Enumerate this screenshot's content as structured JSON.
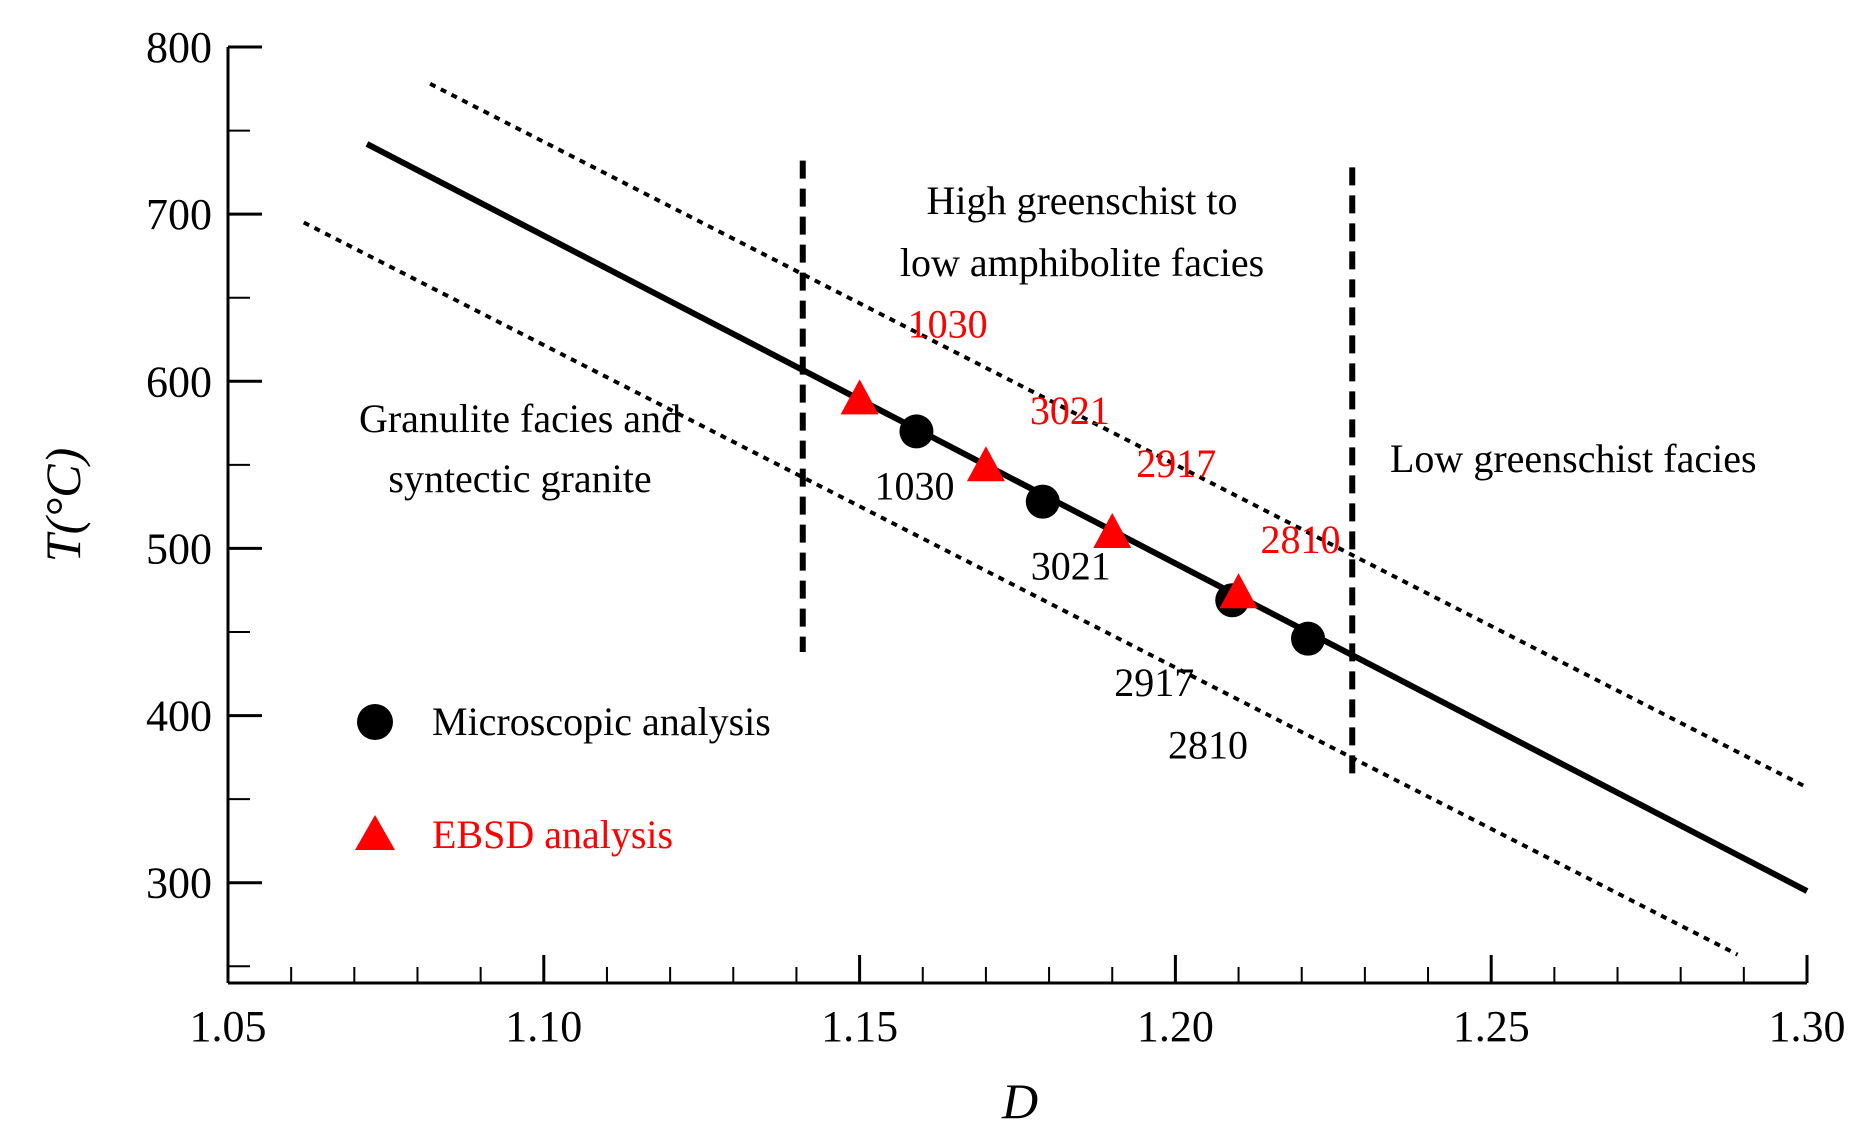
{
  "chart_data": {
    "type": "scatter",
    "xlabel": "D",
    "ylabel": "T(°C)",
    "xlim": [
      1.05,
      1.3
    ],
    "ylim": [
      240,
      800
    ],
    "x_ticks": [
      "1.05",
      "1.10",
      "1.15",
      "1.20",
      "1.25",
      "1.30"
    ],
    "y_ticks": [
      "300",
      "400",
      "500",
      "600",
      "700",
      "800"
    ],
    "x_tick_values": [
      1.05,
      1.1,
      1.15,
      1.2,
      1.25,
      1.3
    ],
    "y_tick_values": [
      300,
      400,
      500,
      600,
      700,
      800
    ],
    "x_minor_step": 0.01,
    "y_minor_step": 50,
    "fit_line": {
      "x": [
        1.072,
        1.3
      ],
      "y": [
        742,
        295
      ]
    },
    "upper_bound": {
      "x": [
        1.082,
        1.3
      ],
      "y": [
        778,
        357
      ]
    },
    "lower_bound": {
      "x": [
        1.062,
        1.289
      ],
      "y": [
        695,
        257
      ]
    },
    "boundary_lines": [
      {
        "x": 1.141,
        "y_range": [
          438,
          732
        ]
      },
      {
        "x": 1.228,
        "y_range": [
          362,
          728
        ]
      }
    ],
    "series": [
      {
        "name": "Microscopic analysis",
        "marker": "circle",
        "color": "#000000",
        "points": [
          {
            "x": 1.159,
            "y": 570,
            "label": "1030"
          },
          {
            "x": 1.179,
            "y": 528,
            "label": "3021"
          },
          {
            "x": 1.209,
            "y": 469,
            "label": "2917"
          },
          {
            "x": 1.221,
            "y": 446,
            "label": "2810"
          }
        ]
      },
      {
        "name": "EBSD analysis",
        "marker": "triangle",
        "color": "#ff0000",
        "points": [
          {
            "x": 1.15,
            "y": 588,
            "label": "1030"
          },
          {
            "x": 1.17,
            "y": 548,
            "label": "3021"
          },
          {
            "x": 1.19,
            "y": 508,
            "label": "2917"
          },
          {
            "x": 1.21,
            "y": 472,
            "label": "2810"
          }
        ]
      }
    ],
    "annotations": {
      "granulite_line1": "Granulite facies and",
      "granulite_line2": "syntectic granite",
      "high_line1": "High greenschist to",
      "high_line2": "low amphibolite  facies",
      "low_greenschist": "Low greenschist facies"
    },
    "legend": [
      {
        "label": "Microscopic analysis",
        "marker": "circle",
        "color": "#000000"
      },
      {
        "label": "EBSD analysis",
        "marker": "triangle",
        "color": "#ff0000"
      }
    ]
  }
}
